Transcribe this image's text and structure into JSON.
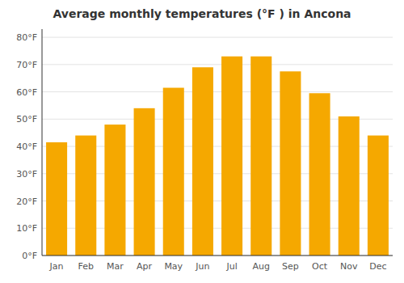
{
  "chart_data": {
    "type": "bar",
    "title": "Average monthly temperatures (°F ) in Ancona",
    "categories": [
      "Jan",
      "Feb",
      "Mar",
      "Apr",
      "May",
      "Jun",
      "Jul",
      "Aug",
      "Sep",
      "Oct",
      "Nov",
      "Dec"
    ],
    "values": [
      41.5,
      44.0,
      48.0,
      54.0,
      61.5,
      69.0,
      73.0,
      73.0,
      67.5,
      59.5,
      51.0,
      44.0
    ],
    "color": "#F5A800",
    "ylim": [
      0,
      83
    ],
    "yticks": [
      {
        "value": 0,
        "label": "0°F"
      },
      {
        "value": 10,
        "label": "10°F"
      },
      {
        "value": 20,
        "label": "20°F"
      },
      {
        "value": 30,
        "label": "30°F"
      },
      {
        "value": 40,
        "label": "40°F"
      },
      {
        "value": 50,
        "label": "50°F"
      },
      {
        "value": 60,
        "label": "60°F"
      },
      {
        "value": 70,
        "label": "70°F"
      },
      {
        "value": 80,
        "label": "80°F"
      }
    ],
    "grid": true
  }
}
